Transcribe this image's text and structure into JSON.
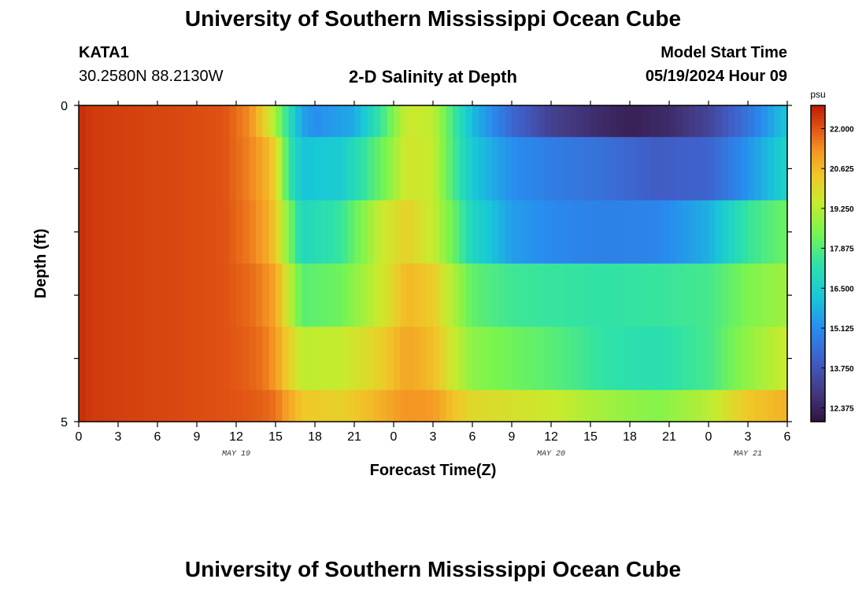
{
  "header": {
    "title": "University of Southern Mississippi Ocean Cube",
    "station_id": "KATA1",
    "coords": "30.2580N  88.2130W",
    "subtitle": "2-D Salinity at Depth",
    "model_start_label": "Model Start Time",
    "model_start_value": "05/19/2024 Hour 09"
  },
  "footer": {
    "title": "University of Southern Mississippi Ocean Cube"
  },
  "chart_data": {
    "type": "heatmap",
    "title": "2-D Salinity at Depth",
    "xlabel": "Forecast Time(Z)",
    "ylabel": "Depth (ft)",
    "x_tick_labels": [
      "0",
      "3",
      "6",
      "9",
      "12",
      "15",
      "18",
      "21",
      "0",
      "3",
      "6",
      "9",
      "12",
      "15",
      "18",
      "21",
      "0",
      "3",
      "6"
    ],
    "date_labels": [
      {
        "text": "MAY 19",
        "hour": 12
      },
      {
        "text": "MAY 20",
        "hour": 36
      },
      {
        "text": "MAY 21",
        "hour": 51
      }
    ],
    "x_range_hours": [
      0,
      54
    ],
    "y_tick_labels": [
      "0",
      "5"
    ],
    "ylim": [
      0,
      5
    ],
    "colorbar": {
      "unit": "psu",
      "ticks": [
        "22.000",
        "20.625",
        "19.250",
        "17.875",
        "16.500",
        "15.125",
        "13.750",
        "12.375"
      ],
      "min": 11.9,
      "max": 22.8
    },
    "rows": [
      {
        "depth_top": 0,
        "depth_bottom": 0.5,
        "keyframes": [
          [
            0,
            22.6
          ],
          [
            1,
            22.4
          ],
          [
            11,
            22.1
          ],
          [
            13,
            21.4
          ],
          [
            14,
            20.4
          ],
          [
            15,
            19.0
          ],
          [
            16,
            17.2
          ],
          [
            17,
            15.6
          ],
          [
            18,
            15.2
          ],
          [
            21,
            15.7
          ],
          [
            23,
            17.5
          ],
          [
            25,
            19.6
          ],
          [
            27,
            19.4
          ],
          [
            28.5,
            17.7
          ],
          [
            30,
            16.0
          ],
          [
            33,
            14.3
          ],
          [
            36,
            13.2
          ],
          [
            39,
            12.7
          ],
          [
            42,
            12.3
          ],
          [
            45,
            12.6
          ],
          [
            48,
            13.3
          ],
          [
            51,
            14.6
          ],
          [
            54,
            16.3
          ]
        ]
      },
      {
        "depth_top": 0.5,
        "depth_bottom": 1.5,
        "keyframes": [
          [
            0,
            22.6
          ],
          [
            1,
            22.4
          ],
          [
            11,
            22.1
          ],
          [
            13,
            21.5
          ],
          [
            14,
            21.0
          ],
          [
            15,
            20.2
          ],
          [
            16,
            17.5
          ],
          [
            17,
            16.2
          ],
          [
            20,
            16.4
          ],
          [
            23,
            18.2
          ],
          [
            25,
            19.7
          ],
          [
            27,
            19.5
          ],
          [
            28.5,
            17.8
          ],
          [
            30,
            16.3
          ],
          [
            33,
            15.2
          ],
          [
            36,
            14.8
          ],
          [
            40,
            14.5
          ],
          [
            44,
            14.0
          ],
          [
            48,
            14.2
          ],
          [
            51,
            15.3
          ],
          [
            54,
            16.7
          ]
        ]
      },
      {
        "depth_top": 1.5,
        "depth_bottom": 2.5,
        "keyframes": [
          [
            0,
            22.6
          ],
          [
            1,
            22.4
          ],
          [
            11,
            22.1
          ],
          [
            13,
            21.6
          ],
          [
            14,
            21.2
          ],
          [
            15,
            20.4
          ],
          [
            16,
            18.5
          ],
          [
            17,
            16.9
          ],
          [
            20,
            17.5
          ],
          [
            23,
            19.5
          ],
          [
            25,
            20.2
          ],
          [
            27,
            19.5
          ],
          [
            28.5,
            18.3
          ],
          [
            30,
            16.8
          ],
          [
            33,
            15.5
          ],
          [
            36,
            15.1
          ],
          [
            40,
            14.9
          ],
          [
            44,
            15.0
          ],
          [
            48,
            15.8
          ],
          [
            51,
            17.5
          ],
          [
            54,
            18.3
          ]
        ]
      },
      {
        "depth_top": 2.5,
        "depth_bottom": 3.5,
        "keyframes": [
          [
            0,
            22.6
          ],
          [
            1,
            22.4
          ],
          [
            11,
            22.1
          ],
          [
            13,
            21.8
          ],
          [
            14,
            21.5
          ],
          [
            15,
            21.0
          ],
          [
            16,
            19.5
          ],
          [
            17,
            18.0
          ],
          [
            20,
            18.3
          ],
          [
            23,
            19.6
          ],
          [
            25,
            20.7
          ],
          [
            27,
            20.3
          ],
          [
            28.5,
            19.2
          ],
          [
            30,
            18.1
          ],
          [
            33,
            17.6
          ],
          [
            36,
            17.5
          ],
          [
            40,
            17.4
          ],
          [
            44,
            17.5
          ],
          [
            48,
            17.7
          ],
          [
            51,
            18.5
          ],
          [
            54,
            19.0
          ]
        ]
      },
      {
        "depth_top": 3.5,
        "depth_bottom": 4.5,
        "keyframes": [
          [
            0,
            22.6
          ],
          [
            1,
            22.4
          ],
          [
            11,
            22.1
          ],
          [
            13,
            21.9
          ],
          [
            14,
            21.7
          ],
          [
            15,
            21.2
          ],
          [
            16,
            20.2
          ],
          [
            17,
            19.4
          ],
          [
            20,
            19.5
          ],
          [
            23,
            20.2
          ],
          [
            25,
            21.0
          ],
          [
            27,
            20.6
          ],
          [
            28.5,
            19.6
          ],
          [
            30,
            18.7
          ],
          [
            33,
            18.3
          ],
          [
            36,
            18.0
          ],
          [
            40,
            17.4
          ],
          [
            44,
            17.2
          ],
          [
            48,
            17.7
          ],
          [
            51,
            18.8
          ],
          [
            54,
            19.6
          ]
        ]
      },
      {
        "depth_top": 4.5,
        "depth_bottom": 5,
        "keyframes": [
          [
            0,
            22.6
          ],
          [
            1,
            22.4
          ],
          [
            11,
            22.1
          ],
          [
            13,
            22.0
          ],
          [
            14,
            21.9
          ],
          [
            15,
            21.7
          ],
          [
            16,
            21.0
          ],
          [
            17,
            20.4
          ],
          [
            20,
            20.2
          ],
          [
            23,
            20.8
          ],
          [
            25,
            21.3
          ],
          [
            27,
            21.2
          ],
          [
            28.5,
            20.5
          ],
          [
            30,
            20.0
          ],
          [
            33,
            19.8
          ],
          [
            36,
            19.6
          ],
          [
            40,
            19.0
          ],
          [
            44,
            18.6
          ],
          [
            48,
            19.3
          ],
          [
            51,
            20.4
          ],
          [
            54,
            20.8
          ]
        ]
      }
    ]
  }
}
